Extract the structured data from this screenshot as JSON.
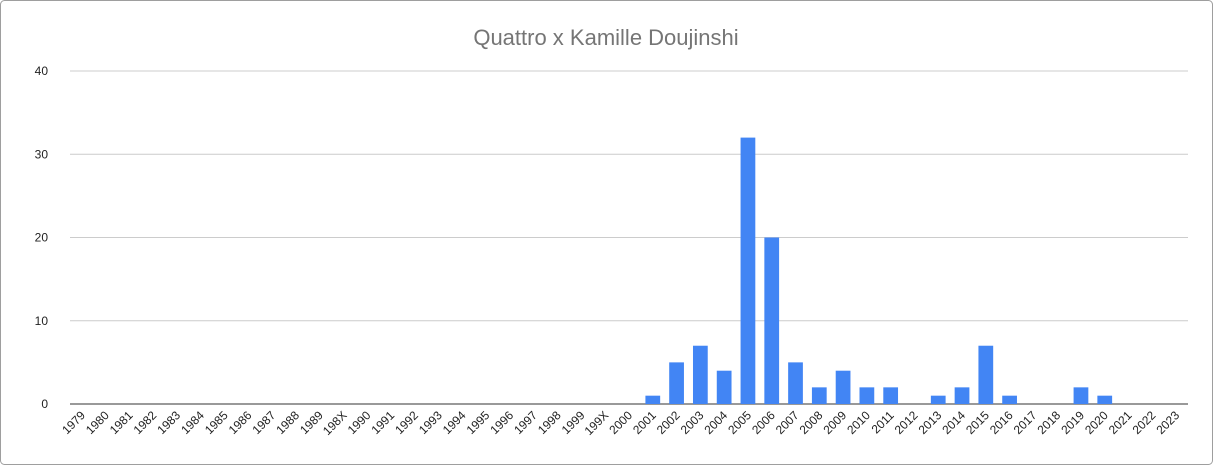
{
  "chart_data": {
    "type": "bar",
    "title": "Quattro x Kamille Doujinshi",
    "categories": [
      "1979",
      "1980",
      "1981",
      "1982",
      "1983",
      "1984",
      "1985",
      "1986",
      "1987",
      "1988",
      "1989",
      "198X",
      "1990",
      "1991",
      "1992",
      "1993",
      "1994",
      "1995",
      "1996",
      "1997",
      "1998",
      "1999",
      "199X",
      "2000",
      "2001",
      "2002",
      "2003",
      "2004",
      "2005",
      "2006",
      "2007",
      "2008",
      "2009",
      "2010",
      "2011",
      "2012",
      "2013",
      "2014",
      "2015",
      "2016",
      "2017",
      "2018",
      "2019",
      "2020",
      "2021",
      "2022",
      "2023"
    ],
    "values": [
      0,
      0,
      0,
      0,
      0,
      0,
      0,
      0,
      0,
      0,
      0,
      0,
      0,
      0,
      0,
      0,
      0,
      0,
      0,
      0,
      0,
      0,
      0,
      0,
      1,
      5,
      7,
      4,
      32,
      20,
      5,
      2,
      4,
      2,
      2,
      0,
      1,
      2,
      7,
      1,
      0,
      0,
      2,
      1,
      0,
      0,
      0
    ],
    "color": "#4285f4",
    "ylim": [
      0,
      40
    ],
    "yticks": [
      0,
      10,
      20,
      30,
      40
    ],
    "grid": true
  }
}
